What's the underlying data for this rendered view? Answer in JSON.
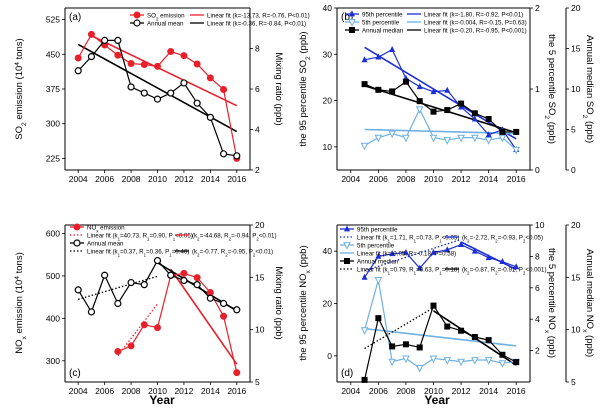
{
  "figure": {
    "year_label": "Year"
  },
  "chart_data": [
    {
      "id": "a",
      "panel_label": "(a)",
      "type": "line",
      "x": [
        2004,
        2005,
        2006,
        2007,
        2008,
        2009,
        2010,
        2011,
        2012,
        2013,
        2014,
        2015,
        2016
      ],
      "xlim": [
        2003,
        2017
      ],
      "xticks": [
        2004,
        2006,
        2008,
        2010,
        2012,
        2014,
        2016
      ],
      "left_axis": {
        "label": "SO2 emission (10^4 tons)",
        "ylim": [
          200,
          550
        ],
        "ticks": [
          225,
          300,
          375,
          450,
          525
        ],
        "color": "#e8202a"
      },
      "right_axis": {
        "label": "Mixing ratio (ppb)",
        "ylim": [
          2,
          10
        ],
        "ticks": [
          2,
          4,
          6,
          8
        ],
        "color": "#000000"
      },
      "series": [
        {
          "name": "SO2 emission",
          "axis": "left",
          "color": "#e8202a",
          "marker": "circle-filled",
          "values": [
            442,
            493,
            470,
            448,
            430,
            428,
            424,
            456,
            447,
            429,
            399,
            374,
            225
          ]
        },
        {
          "name": "Annual mean",
          "axis": "right",
          "color": "#000000",
          "marker": "circle-open",
          "values": [
            6.9,
            7.6,
            8.4,
            8.4,
            6.1,
            5.8,
            5.5,
            5.8,
            6.3,
            5.3,
            4.6,
            2.8,
            2.7
          ]
        }
      ],
      "fits": [
        {
          "label": "Linear fit (k=-13.73, R=-0.76, P<0.01)",
          "axis": "left",
          "color": "#e8202a",
          "x0": 2005,
          "y0": 490,
          "x1": 2016,
          "y1": 339
        },
        {
          "label": "Linear fit (k=-0.36, R=-0.84, P<0.01)",
          "axis": "right",
          "color": "#000000",
          "x0": 2004,
          "y0": 8.2,
          "x1": 2016,
          "y1": 3.9
        }
      ]
    },
    {
      "id": "b",
      "panel_label": "(b)",
      "type": "line",
      "x": [
        2005,
        2006,
        2007,
        2008,
        2009,
        2010,
        2011,
        2012,
        2013,
        2014,
        2015,
        2016
      ],
      "xlim": [
        2003,
        2017
      ],
      "xticks": [
        2004,
        2006,
        2008,
        2010,
        2012,
        2014,
        2016
      ],
      "left_axis": {
        "label": "the 95 percentile SO2 (ppb)",
        "ylim": [
          5,
          40
        ],
        "ticks": [
          10,
          20,
          30,
          40
        ]
      },
      "inner_axis": {
        "label": "the 5 percentile SO2 (ppb)",
        "ylim": [
          0,
          2
        ],
        "ticks": [
          0,
          1,
          2
        ]
      },
      "right_axis": {
        "label": "Annual median SO2 (ppb)",
        "ylim": [
          0,
          20
        ],
        "ticks": [
          0,
          5,
          10,
          15,
          20
        ]
      },
      "series": [
        {
          "name": "95th percentile",
          "axis": "left",
          "color": "#1c2fd6",
          "marker": "triangle-up-filled",
          "values": [
            28.8,
            29.4,
            31.0,
            24.8,
            23.0,
            21.9,
            22.2,
            18.6,
            16.0,
            12.6,
            13.7,
            9.4
          ]
        },
        {
          "name": "5th percentile",
          "axis": "inner",
          "color": "#6fb1e3",
          "marker": "triangle-down-open",
          "values": [
            0.3,
            0.4,
            0.45,
            0.4,
            0.75,
            0.4,
            0.37,
            0.4,
            0.4,
            0.37,
            0.4,
            0.25
          ]
        },
        {
          "name": "Annual median",
          "axis": "right",
          "color": "#000000",
          "marker": "square-filled",
          "values": [
            10.6,
            9.9,
            9.7,
            10.9,
            8.5,
            7.2,
            7.4,
            8.2,
            7.0,
            6.3,
            4.7,
            4.7
          ]
        }
      ],
      "fits": [
        {
          "label": "Linear fit (k=-1.80, R=-0.92, P<0.01)",
          "axis": "left",
          "color": "#1c2fd6",
          "x0": 2005,
          "y0": 31.5,
          "x1": 2016,
          "y1": 11.7
        },
        {
          "label": "Linear fit (k=-0.004, R=-0.15, P=0.63)",
          "axis": "inner",
          "color": "#6fb1e3",
          "x0": 2005,
          "y0": 0.5,
          "x1": 2016,
          "y1": 0.45
        },
        {
          "label": "Linear fit (k=-0.20, R=-0.95, P<0.001)",
          "axis": "right",
          "color": "#000000",
          "x0": 2005,
          "y0": 10.4,
          "x1": 2016,
          "y1": 4.6
        }
      ]
    },
    {
      "id": "c",
      "panel_label": "(c)",
      "type": "line",
      "x": [
        2004,
        2005,
        2006,
        2007,
        2008,
        2009,
        2010,
        2011,
        2012,
        2013,
        2014,
        2015,
        2016
      ],
      "xlim": [
        2003,
        2017
      ],
      "xticks": [
        2004,
        2006,
        2008,
        2010,
        2012,
        2014,
        2016
      ],
      "left_axis": {
        "label": "NOx emission (10^4 tons)",
        "ylim": [
          250,
          620
        ],
        "ticks": [
          300,
          400,
          500,
          600
        ],
        "color": "#e8202a"
      },
      "right_axis": {
        "label": "Mixing ratio (ppb)",
        "ylim": [
          5,
          20
        ],
        "ticks": [
          5,
          10,
          15,
          20
        ],
        "color": "#000000"
      },
      "series": [
        {
          "name": "NOx emission",
          "axis": "left",
          "color": "#e8202a",
          "marker": "circle-filled",
          "x": [
            2007,
            2008,
            2009,
            2010,
            2011,
            2012,
            2013,
            2014,
            2015,
            2016
          ],
          "values": [
            322,
            335,
            385,
            378,
            501,
            506,
            496,
            461,
            405,
            272
          ]
        },
        {
          "name": "Annual mean",
          "axis": "right",
          "color": "#000000",
          "marker": "circle-open",
          "values": [
            13.8,
            11.7,
            15.2,
            12.5,
            14.5,
            14.3,
            16.6,
            15.2,
            14.7,
            14.3,
            13.0,
            12.5,
            11.9
          ]
        }
      ],
      "fits": [
        {
          "label": "Linear fit (k1=40.73, R1=0.90, P1<0.05)",
          "axis": "left",
          "color": "#e8202a",
          "dash": true,
          "x0": 2007,
          "y0": 312,
          "x1": 2010,
          "y1": 434
        },
        {
          "label": "(k2=-44.68, R2=-0.94, P2<0.01)",
          "axis": "left",
          "color": "#e8202a",
          "x0": 2011,
          "y0": 516,
          "x1": 2016,
          "y1": 292
        },
        {
          "label": "Linear fit (k1=0.37, R1=0.36, P1=0.40)",
          "axis": "right",
          "color": "#000000",
          "dash": true,
          "x0": 2004,
          "y0": 12.9,
          "x1": 2010,
          "y1": 15.1
        },
        {
          "label": "(k2=-0.77, R2=-0.95, P2<0.01)",
          "axis": "right",
          "color": "#000000",
          "x0": 2010,
          "y0": 16.4,
          "x1": 2016,
          "y1": 11.8
        }
      ]
    },
    {
      "id": "d",
      "panel_label": "(d)",
      "type": "line",
      "x": [
        2005,
        2006,
        2007,
        2008,
        2009,
        2010,
        2011,
        2012,
        2013,
        2014,
        2015,
        2016
      ],
      "xlim": [
        2003,
        2017
      ],
      "xticks": [
        2004,
        2006,
        2008,
        2010,
        2012,
        2014,
        2016
      ],
      "left_axis": {
        "label": "the 95 percentile NOx (ppb)",
        "ylim": [
          -10,
          50
        ],
        "ticks": [
          0,
          20,
          40
        ]
      },
      "inner_axis": {
        "label": "the 5 percentile NOx (ppb)",
        "ylim": [
          0,
          10
        ],
        "ticks": [
          2,
          4,
          6,
          8,
          10
        ]
      },
      "right_axis": {
        "label": "Annual median NOx (ppb)",
        "ylim": [
          5,
          20
        ],
        "ticks": [
          5,
          10,
          15,
          20
        ]
      },
      "series": [
        {
          "name": "95th percentile",
          "axis": "left",
          "color": "#1c2fd6",
          "marker": "triangle-up-filled",
          "values": [
            30.0,
            38.0,
            39.0,
            39.5,
            33.5,
            39.5,
            40.5,
            42.5,
            40.0,
            37.5,
            36.0,
            34.0
          ]
        },
        {
          "name": "5th percentile",
          "axis": "inner",
          "color": "#6fb1e3",
          "marker": "triangle-down-open",
          "values": [
            3.3,
            6.5,
            1.3,
            1.5,
            0.9,
            1.5,
            1.4,
            1.3,
            1.4,
            1.4,
            1.2,
            1.3
          ]
        },
        {
          "name": "Annual median",
          "axis": "right",
          "color": "#000000",
          "marker": "square-filled",
          "values": [
            5.2,
            11.1,
            8.4,
            8.6,
            8.3,
            12.3,
            10.3,
            9.9,
            9.3,
            9.0,
            7.6,
            6.9
          ]
        }
      ],
      "fits": [
        {
          "label": "Linear fit (k1=1.71, R1=0.73, P1<0.05)",
          "axis": "left",
          "color": "#1c2fd6",
          "dash": true,
          "x0": 2005,
          "y0": 32.5,
          "x1": 2012,
          "y1": 44.5
        },
        {
          "label": "(k2=-2.72, R2=-0.93, P2<0.05)",
          "axis": "left",
          "color": "#1c2fd6",
          "x0": 2012,
          "y0": 43.5,
          "x1": 2016,
          "y1": 33.0
        },
        {
          "label": "Linear fit (k=-0.05, R=-0.18, P=0.58)",
          "axis": "inner",
          "color": "#6fb1e3",
          "x0": 2005,
          "y0": 3.4,
          "x1": 2016,
          "y1": 2.3
        },
        {
          "label": "Linear fit (k1=0.79, R1=0.63, P1=0.18)",
          "axis": "right",
          "color": "#000000",
          "dash": true,
          "x0": 2005,
          "y0": 8.2,
          "x1": 2010,
          "y1": 12.1
        },
        {
          "label": "(k2=-0.87, R2=-0.91, P2<0.001)",
          "axis": "right",
          "color": "#000000",
          "x0": 2010,
          "y0": 11.8,
          "x1": 2016,
          "y1": 6.6
        }
      ]
    }
  ]
}
